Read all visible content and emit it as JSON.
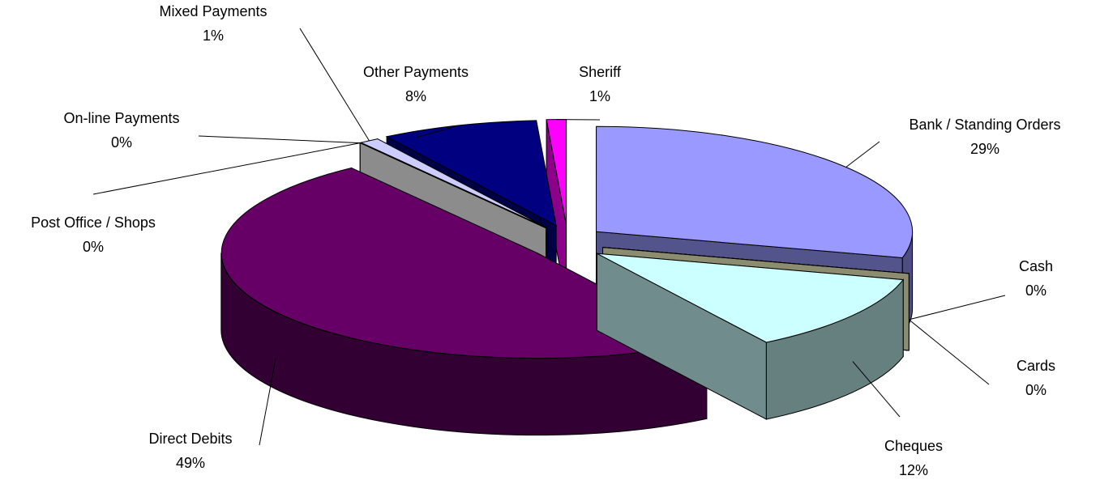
{
  "chart_data": {
    "type": "pie",
    "categories": [
      "Bank / Standing Orders",
      "Cash",
      "Cards",
      "Cheques",
      "Direct Debits",
      "Post Office / Shops",
      "On-line Payments",
      "Mixed Payments",
      "Other Payments",
      "Sheriff"
    ],
    "values": [
      29,
      0,
      0,
      12,
      49,
      0,
      0,
      1,
      8,
      1
    ],
    "value_labels": [
      "29%",
      "0%",
      "0%",
      "12%",
      "49%",
      "0%",
      "0%",
      "1%",
      "8%",
      "1%"
    ],
    "colors": [
      "#9999ff",
      "#808060",
      "#ffffcc",
      "#ccffff",
      "#660066",
      "#804040",
      "#ffffff",
      "#ccccff",
      "#000080",
      "#ff00ff"
    ]
  }
}
